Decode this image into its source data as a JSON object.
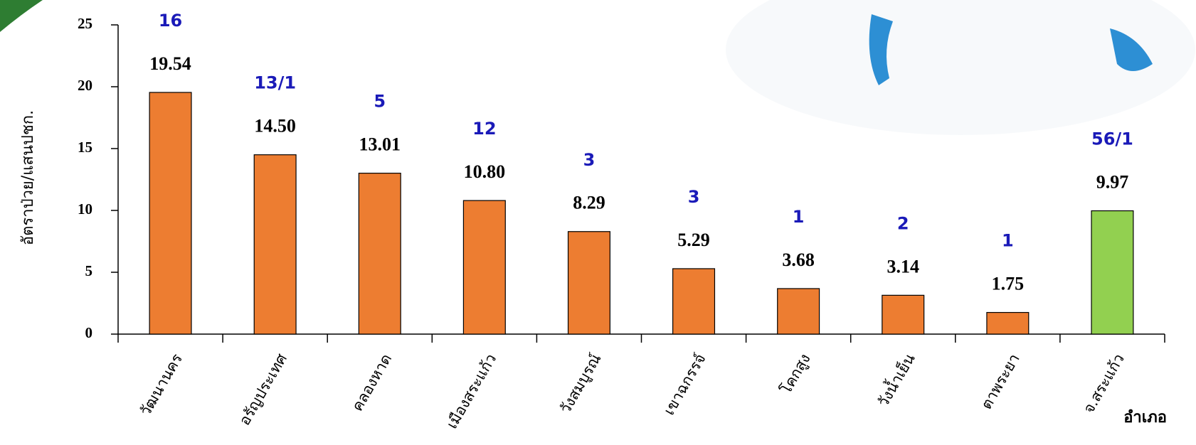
{
  "chart_data": {
    "type": "bar",
    "y_label": "อัตราป่วย/แสนปชก.",
    "x_label": "อำเภอ",
    "categories": [
      "วัฒนานคร",
      "อรัญประเทศ",
      "คลองหาด",
      "เมืองสระแก้ว",
      "วังสมบูรณ์",
      "เขาฉกรรจ์",
      "โคกสูง",
      "วังน้ำเย็น",
      "ตาพระยา",
      "จ.สระแก้ว"
    ],
    "values": [
      19.54,
      14.5,
      13.01,
      10.8,
      8.29,
      5.29,
      3.68,
      3.14,
      1.75,
      9.97
    ],
    "value_labels": [
      "19.54",
      "14.50",
      "13.01",
      "10.80",
      "8.29",
      "5.29",
      "3.68",
      "3.14",
      "1.75",
      "9.97"
    ],
    "annotations": [
      "16",
      "13/1",
      "5",
      "12",
      "3",
      "3",
      "1",
      "2",
      "1",
      "56/1"
    ],
    "colors": [
      "#ed7d31",
      "#ed7d31",
      "#ed7d31",
      "#ed7d31",
      "#ed7d31",
      "#ed7d31",
      "#ed7d31",
      "#ed7d31",
      "#ed7d31",
      "#92d050"
    ],
    "ylim": [
      0,
      25
    ],
    "yticks": [
      0,
      5,
      10,
      15,
      20,
      25
    ],
    "grid": false
  }
}
